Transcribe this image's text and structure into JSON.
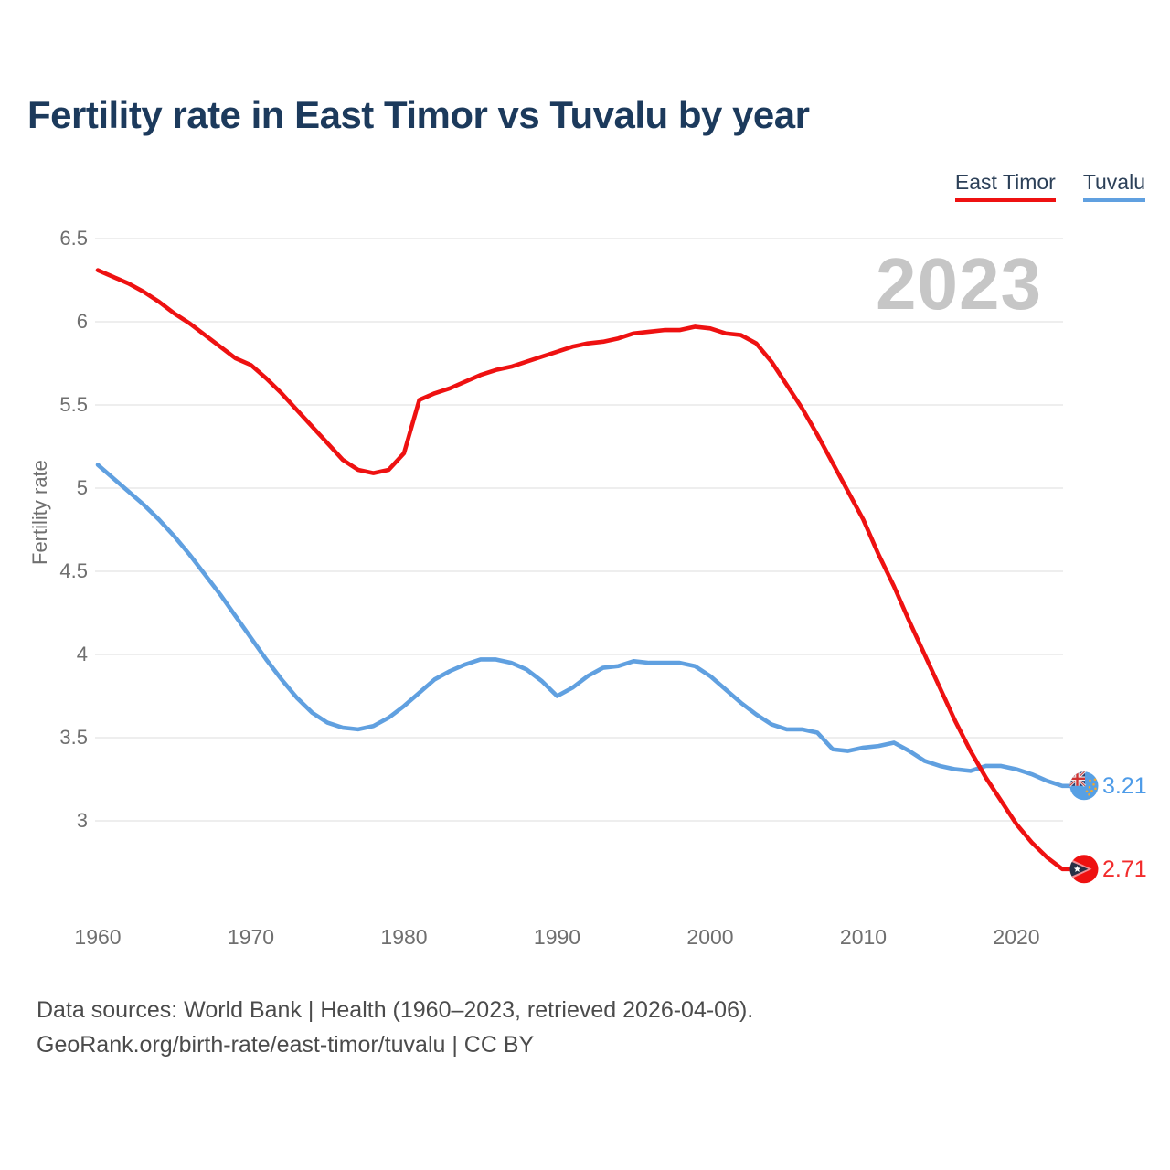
{
  "title": "Fertility rate in East Timor vs Tuvalu by year",
  "legend": {
    "items": [
      {
        "label": "East Timor",
        "color": "#ee1111"
      },
      {
        "label": "Tuvalu",
        "color": "#60a0e0"
      }
    ]
  },
  "watermark": "2023",
  "y_axis": {
    "title": "Fertility rate",
    "ticks": [
      6.5,
      6,
      5.5,
      5,
      4.5,
      4,
      3.5,
      3
    ]
  },
  "x_axis": {
    "ticks": [
      1960,
      1970,
      1980,
      1990,
      2000,
      2010,
      2020
    ]
  },
  "end_labels": [
    {
      "series": "Tuvalu",
      "text": "3.21",
      "color": "#4d9be8"
    },
    {
      "series": "East Timor",
      "text": "2.71",
      "color": "#f22c2c"
    }
  ],
  "footer": {
    "line1": "Data sources: World Bank | Health (1960–2023, retrieved 2026-04-06).",
    "line2": "GeoRank.org/birth-rate/east-timor/tuvalu | CC BY"
  },
  "chart_data": {
    "type": "line",
    "title": "Fertility rate in East Timor vs Tuvalu by year",
    "xlabel": "",
    "ylabel": "Fertility rate",
    "x_range": [
      1960,
      2023
    ],
    "ylim": [
      2.5,
      6.5
    ],
    "grid": true,
    "legend_position": "top-right",
    "years": [
      1960,
      1961,
      1962,
      1963,
      1964,
      1965,
      1966,
      1967,
      1968,
      1969,
      1970,
      1971,
      1972,
      1973,
      1974,
      1975,
      1976,
      1977,
      1978,
      1979,
      1980,
      1981,
      1982,
      1983,
      1984,
      1985,
      1986,
      1987,
      1988,
      1989,
      1990,
      1991,
      1992,
      1993,
      1994,
      1995,
      1996,
      1997,
      1998,
      1999,
      2000,
      2001,
      2002,
      2003,
      2004,
      2005,
      2006,
      2007,
      2008,
      2009,
      2010,
      2011,
      2012,
      2013,
      2014,
      2015,
      2016,
      2017,
      2018,
      2019,
      2020,
      2021,
      2022,
      2023
    ],
    "series": [
      {
        "name": "East Timor",
        "color": "#ee1111",
        "end_value": 2.71,
        "values": [
          6.31,
          6.27,
          6.23,
          6.18,
          6.12,
          6.05,
          5.99,
          5.92,
          5.85,
          5.78,
          5.74,
          5.66,
          5.57,
          5.47,
          5.37,
          5.27,
          5.17,
          5.11,
          5.09,
          5.11,
          5.21,
          5.53,
          5.57,
          5.6,
          5.64,
          5.68,
          5.71,
          5.73,
          5.76,
          5.79,
          5.82,
          5.85,
          5.87,
          5.88,
          5.9,
          5.93,
          5.94,
          5.95,
          5.95,
          5.97,
          5.96,
          5.93,
          5.92,
          5.87,
          5.76,
          5.62,
          5.48,
          5.32,
          5.15,
          4.98,
          4.81,
          4.6,
          4.41,
          4.2,
          4.0,
          3.8,
          3.6,
          3.42,
          3.26,
          3.12,
          2.98,
          2.87,
          2.78,
          2.71
        ]
      },
      {
        "name": "Tuvalu",
        "color": "#60a0e0",
        "end_value": 3.21,
        "values": [
          5.14,
          5.06,
          4.98,
          4.9,
          4.81,
          4.71,
          4.6,
          4.48,
          4.36,
          4.23,
          4.1,
          3.97,
          3.85,
          3.74,
          3.65,
          3.59,
          3.56,
          3.55,
          3.57,
          3.62,
          3.69,
          3.77,
          3.85,
          3.9,
          3.94,
          3.97,
          3.97,
          3.95,
          3.91,
          3.84,
          3.75,
          3.8,
          3.87,
          3.92,
          3.93,
          3.96,
          3.95,
          3.95,
          3.95,
          3.93,
          3.87,
          3.79,
          3.71,
          3.64,
          3.58,
          3.55,
          3.55,
          3.53,
          3.43,
          3.42,
          3.44,
          3.45,
          3.47,
          3.42,
          3.36,
          3.33,
          3.31,
          3.3,
          3.33,
          3.33,
          3.31,
          3.28,
          3.24,
          3.21
        ]
      }
    ]
  }
}
